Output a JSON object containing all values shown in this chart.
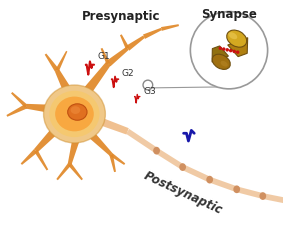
{
  "bg_color": "#ffffff",
  "presynaptic_label": "Presynaptic",
  "postsynaptic_label": "Postsynaptic",
  "synapse_label": "Synapse",
  "g1_label": "G1",
  "g2_label": "G2",
  "g3_label": "G3",
  "soma_color_outer": "#F0C080",
  "soma_color_mid": "#F5C878",
  "soma_color_inner": "#F8A030",
  "nucleus_color": "#E07020",
  "dendrite_color": "#E08828",
  "axon_color": "#F0C0A0",
  "axon_node_color": "#D09060",
  "post_dendrite_color": "#D07820",
  "synapse_upper_color": "#D4A820",
  "synapse_lower_color": "#A07010",
  "synapse_edge": "#705010",
  "red_color": "#CC1010",
  "blue_color": "#1818AA",
  "circle_color": "#888888",
  "label_color_pre": "#333333",
  "label_color_post": "#333333",
  "title_fontsize": 8.5,
  "label_fontsize": 6.5
}
